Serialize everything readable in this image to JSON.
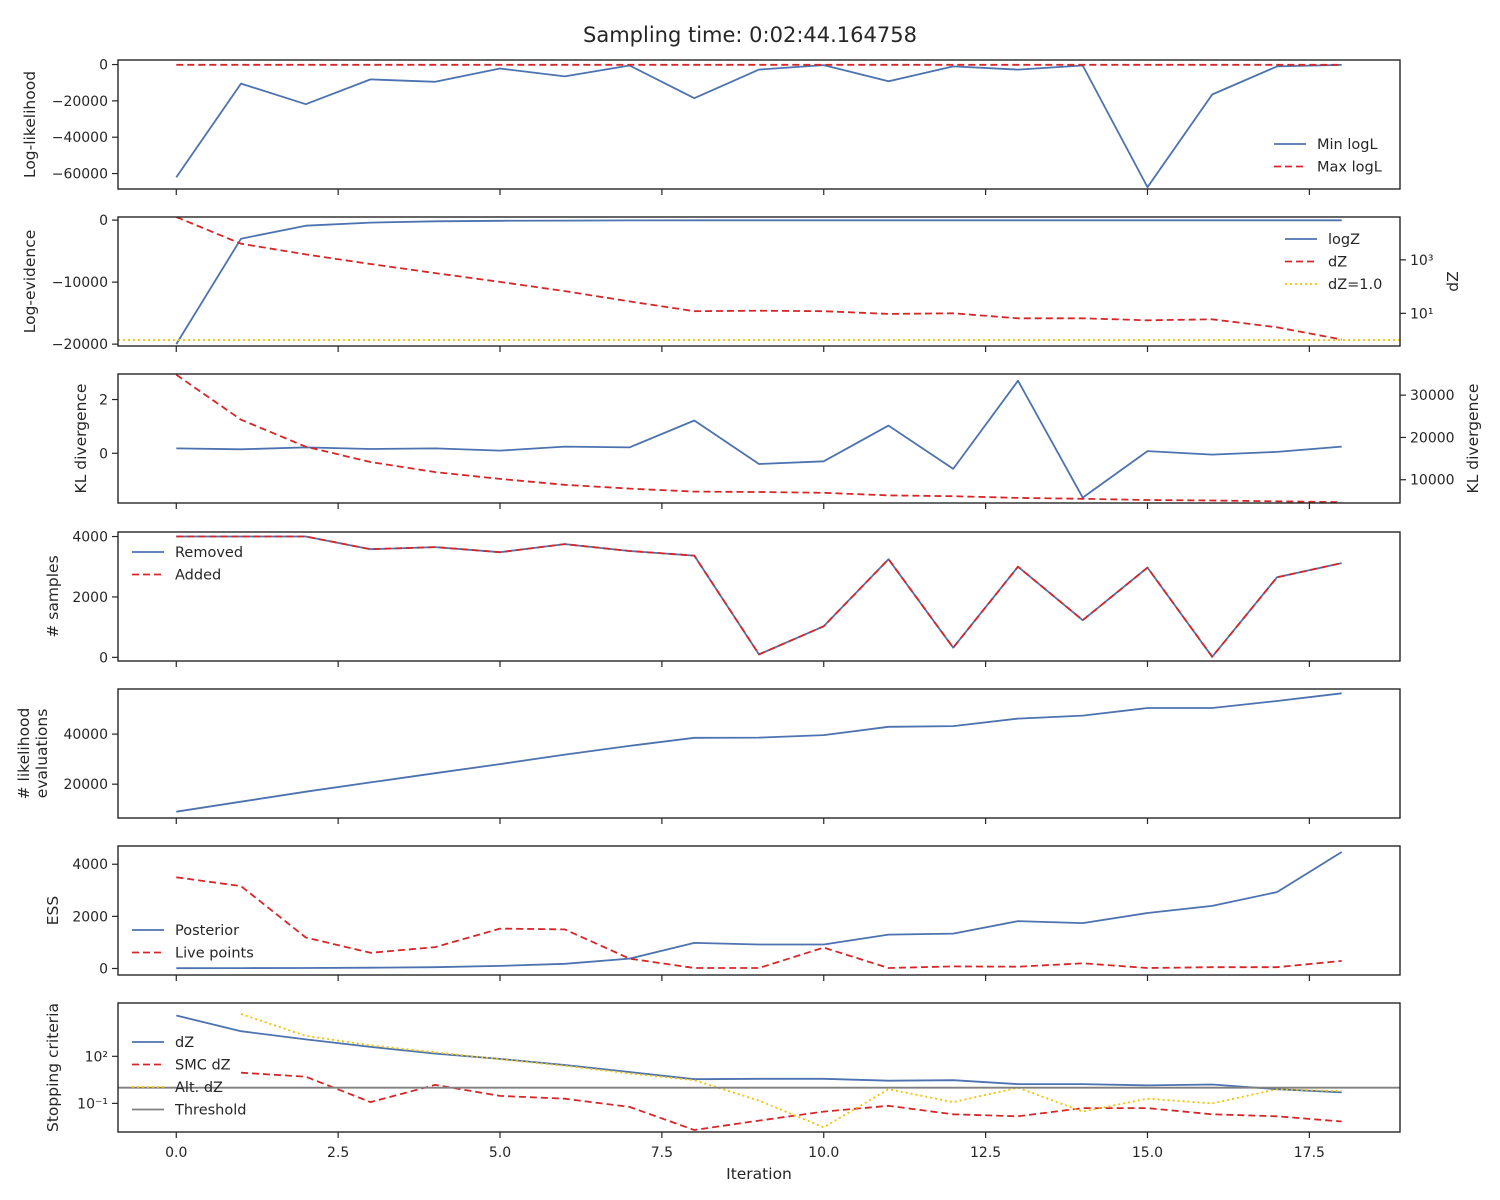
{
  "figure": {
    "title": "Sampling time: 0:02:44.164758",
    "xlabel": "Iteration"
  },
  "chart_data": [
    {
      "type": "line",
      "name": "loglikelihood-panel",
      "xlim": [
        -0.9,
        18.9
      ],
      "ylim": [
        -68500,
        2500
      ],
      "yticks": [
        0,
        -20000,
        -40000,
        -60000
      ],
      "ytick_labels": [
        "0",
        "−20000",
        "−40000",
        "−60000"
      ],
      "ylabel": "Log-likelihood",
      "legend": "right-bottom",
      "series": [
        {
          "name": "Min logL",
          "color": "#4c72b0",
          "style": "solid",
          "x": [
            0,
            1,
            2,
            3,
            4,
            5,
            6,
            7,
            8,
            9,
            10,
            11,
            12,
            13,
            14,
            15,
            16,
            17,
            18
          ],
          "values": [
            -62000,
            -10500,
            -21800,
            -8200,
            -9500,
            -2200,
            -6500,
            -500,
            -18500,
            -2800,
            -300,
            -9200,
            -1000,
            -2800,
            -500,
            -67500,
            -16500,
            -1000,
            -200
          ]
        },
        {
          "name": "Max logL",
          "color": "#d62728",
          "style": "dashed",
          "x": [
            0,
            1,
            2,
            3,
            4,
            5,
            6,
            7,
            8,
            9,
            10,
            11,
            12,
            13,
            14,
            15,
            16,
            17,
            18
          ],
          "values": [
            -150,
            -150,
            -150,
            -150,
            -150,
            -150,
            -150,
            -150,
            -150,
            -150,
            -150,
            -150,
            -150,
            -150,
            -150,
            -150,
            -150,
            -150,
            -150
          ]
        }
      ]
    },
    {
      "type": "line",
      "name": "evidence-panel",
      "xlim": [
        -0.9,
        18.9
      ],
      "ylim": [
        -20300,
        500
      ],
      "yticks": [
        0,
        -10000,
        -20000
      ],
      "ytick_labels": [
        "0",
        "−10000",
        "−20000"
      ],
      "ylabel": "Log-evidence",
      "y2label": "dZ",
      "y2scale": "log",
      "y2lim": [
        0.6,
        40000
      ],
      "y2ticks": [
        10,
        1000
      ],
      "y2tick_labels": [
        "10¹",
        "10³"
      ],
      "legend": "right-top",
      "series": [
        {
          "name": "logZ",
          "color": "#4c72b0",
          "style": "solid",
          "axis": "y",
          "x": [
            0,
            1,
            2,
            3,
            4,
            5,
            6,
            7,
            8,
            9,
            10,
            11,
            12,
            13,
            14,
            15,
            16,
            17,
            18
          ],
          "values": [
            -20000,
            -3000,
            -900,
            -400,
            -200,
            -120,
            -80,
            -50,
            -40,
            -30,
            -30,
            -30,
            -30,
            -30,
            -30,
            -30,
            -30,
            -30,
            -30
          ]
        },
        {
          "name": "dZ",
          "color": "#d62728",
          "style": "dashed",
          "axis": "y2",
          "x": [
            0,
            1,
            2,
            3,
            4,
            5,
            6,
            7,
            8,
            9,
            10,
            11,
            12,
            13,
            14,
            15,
            16,
            17,
            18
          ],
          "values": [
            40000,
            4000,
            1600,
            700,
            320,
            150,
            68,
            28,
            12,
            12.5,
            12,
            9.5,
            10,
            6.5,
            6.5,
            5.5,
            6,
            3,
            1.05
          ]
        },
        {
          "name": "dZ=1.0",
          "color": "#f5c000",
          "style": "dotted",
          "axis": "y2",
          "x": [
            -0.9,
            18.9
          ],
          "values": [
            1.0,
            1.0
          ]
        }
      ]
    },
    {
      "type": "line",
      "name": "kl-panel",
      "xlim": [
        -0.9,
        18.9
      ],
      "ylim": [
        -1.85,
        2.95
      ],
      "yticks": [
        2,
        0
      ],
      "ytick_labels": [
        "2",
        "0"
      ],
      "ylabel": "KL divergence",
      "y2label": "KL divergence",
      "y2lim": [
        4500,
        35000
      ],
      "y2ticks": [
        30000,
        20000,
        10000
      ],
      "y2tick_labels": [
        "30000",
        "20000",
        "10000"
      ],
      "series": [
        {
          "name": "",
          "color": "#4c72b0",
          "style": "solid",
          "axis": "y",
          "x": [
            0,
            1,
            2,
            3,
            4,
            5,
            6,
            7,
            8,
            9,
            10,
            11,
            12,
            13,
            14,
            15,
            16,
            17,
            18
          ],
          "values": [
            0.18,
            0.15,
            0.22,
            0.16,
            0.18,
            0.1,
            0.25,
            0.22,
            1.22,
            -0.4,
            -0.3,
            1.03,
            -0.58,
            2.7,
            -1.65,
            0.08,
            -0.05,
            0.05,
            0.25
          ]
        },
        {
          "name": "",
          "color": "#d62728",
          "style": "dashed",
          "axis": "y2",
          "x": [
            0,
            1,
            2,
            3,
            4,
            5,
            6,
            7,
            8,
            9,
            10,
            11,
            12,
            13,
            14,
            15,
            16,
            17,
            18
          ],
          "values": [
            34800,
            24200,
            17800,
            14200,
            11800,
            10200,
            8800,
            7900,
            7200,
            7100,
            6900,
            6300,
            6100,
            5700,
            5500,
            5200,
            5100,
            4900,
            4700
          ]
        }
      ]
    },
    {
      "type": "line",
      "name": "samples-panel",
      "xlim": [
        -0.9,
        18.9
      ],
      "ylim": [
        -120,
        4150
      ],
      "yticks": [
        4000,
        2000,
        0
      ],
      "ytick_labels": [
        "4000",
        "2000",
        "0"
      ],
      "ylabel": "# samples",
      "legend": "left-top",
      "series": [
        {
          "name": "Removed",
          "color": "#4c72b0",
          "style": "solid",
          "x": [
            0,
            1,
            2,
            3,
            4,
            5,
            6,
            7,
            8,
            9,
            10,
            11,
            12,
            13,
            14,
            15,
            16,
            17,
            18
          ],
          "values": [
            4000,
            4000,
            4000,
            3580,
            3650,
            3480,
            3750,
            3520,
            3370,
            100,
            1030,
            3250,
            320,
            3000,
            1230,
            2970,
            20,
            2650,
            3120
          ]
        },
        {
          "name": "Added",
          "color": "#d62728",
          "style": "dashed",
          "x": [
            0,
            1,
            2,
            3,
            4,
            5,
            6,
            7,
            8,
            9,
            10,
            11,
            12,
            13,
            14,
            15,
            16,
            17,
            18
          ],
          "values": [
            4000,
            4000,
            4000,
            3580,
            3650,
            3480,
            3750,
            3520,
            3370,
            100,
            1030,
            3250,
            320,
            3000,
            1230,
            2970,
            20,
            2650,
            3120
          ]
        }
      ]
    },
    {
      "type": "line",
      "name": "evaluations-panel",
      "xlim": [
        -0.9,
        18.9
      ],
      "ylim": [
        6500,
        58000
      ],
      "yticks": [
        40000,
        20000
      ],
      "ytick_labels": [
        "40000",
        "20000"
      ],
      "ylabel": [
        "# likelihood",
        "evaluations"
      ],
      "series": [
        {
          "name": "",
          "color": "#4c72b0",
          "style": "solid",
          "x": [
            0,
            1,
            2,
            3,
            4,
            5,
            6,
            7,
            8,
            9,
            10,
            11,
            12,
            13,
            14,
            15,
            16,
            17,
            18
          ],
          "values": [
            9000,
            13000,
            17000,
            20700,
            24400,
            28000,
            31800,
            35300,
            38500,
            38600,
            39600,
            42900,
            43200,
            46200,
            47400,
            50400,
            50400,
            53200,
            56300
          ]
        }
      ]
    },
    {
      "type": "line",
      "name": "ess-panel",
      "xlim": [
        -0.9,
        18.9
      ],
      "ylim": [
        -250,
        4700
      ],
      "yticks": [
        4000,
        2000,
        0
      ],
      "ytick_labels": [
        "4000",
        "2000",
        "0"
      ],
      "ylabel": "ESS",
      "legend": "left-bottom",
      "series": [
        {
          "name": "Posterior",
          "color": "#4c72b0",
          "style": "solid",
          "x": [
            0,
            1,
            2,
            3,
            4,
            5,
            6,
            7,
            8,
            9,
            10,
            11,
            12,
            13,
            14,
            15,
            16,
            17,
            18
          ],
          "values": [
            10,
            15,
            20,
            30,
            50,
            100,
            180,
            380,
            980,
            920,
            920,
            1300,
            1340,
            1820,
            1740,
            2130,
            2400,
            2930,
            4470
          ]
        },
        {
          "name": "Live points",
          "color": "#d62728",
          "style": "dashed",
          "x": [
            0,
            1,
            2,
            3,
            4,
            5,
            6,
            7,
            8,
            9,
            10,
            11,
            12,
            13,
            14,
            15,
            16,
            17,
            18
          ],
          "values": [
            3500,
            3160,
            1190,
            600,
            820,
            1530,
            1500,
            380,
            20,
            20,
            800,
            20,
            80,
            70,
            200,
            20,
            50,
            50,
            290
          ]
        }
      ]
    },
    {
      "type": "line",
      "name": "stopping-panel",
      "xlim": [
        -0.9,
        18.9
      ],
      "yscale": "log",
      "ylim": [
        0.0015,
        250000
      ],
      "yticks": [
        100,
        0.1
      ],
      "ytick_labels": [
        "10²",
        "10⁻¹"
      ],
      "ylabel": "Stopping criteria",
      "xlabel": "Iteration",
      "xticks": [
        0,
        2.5,
        5,
        7.5,
        10,
        12.5,
        15,
        17.5
      ],
      "xtick_labels": [
        "0.0",
        "2.5",
        "5.0",
        "7.5",
        "10.0",
        "12.5",
        "15.0",
        "17.5"
      ],
      "legend": "left-bottom",
      "series": [
        {
          "name": "dZ",
          "color": "#4c72b0",
          "style": "solid",
          "x": [
            0,
            1,
            2,
            3,
            4,
            5,
            6,
            7,
            8,
            9,
            10,
            11,
            12,
            13,
            14,
            15,
            16,
            17,
            18
          ],
          "values": [
            40000,
            4000,
            1200,
            400,
            150,
            68,
            28,
            10,
            3.5,
            3.7,
            3.7,
            2.8,
            3.0,
            1.7,
            1.7,
            1.4,
            1.6,
            0.8,
            0.5
          ]
        },
        {
          "name": "SMC dZ",
          "color": "#d62728",
          "style": "dashed",
          "x": [
            1,
            2,
            3,
            4,
            5,
            6,
            7,
            8,
            9,
            10,
            11,
            12,
            13,
            14,
            15,
            16,
            17,
            18
          ],
          "values": [
            9,
            5,
            0.12,
            1.5,
            0.3,
            0.2,
            0.06,
            0.002,
            0.008,
            0.03,
            0.07,
            0.02,
            0.015,
            0.05,
            0.05,
            0.02,
            0.015,
            0.007
          ]
        },
        {
          "name": "Alt. dZ",
          "color": "#f5c000",
          "style": "dotted",
          "x": [
            1,
            2,
            3,
            4,
            5,
            6,
            7,
            8,
            9,
            10,
            11,
            12,
            13,
            14,
            15,
            16,
            17,
            18
          ],
          "values": [
            50000,
            2000,
            500,
            180,
            65,
            25,
            8,
            3,
            0.15,
            0.003,
            0.8,
            0.12,
            1.0,
            0.03,
            0.2,
            0.1,
            0.8,
            0.6
          ]
        },
        {
          "name": "Threshold",
          "color": "#7f7f7f",
          "style": "solid",
          "x": [
            -0.9,
            18.9
          ],
          "values": [
            1.0,
            1.0
          ]
        }
      ]
    }
  ]
}
